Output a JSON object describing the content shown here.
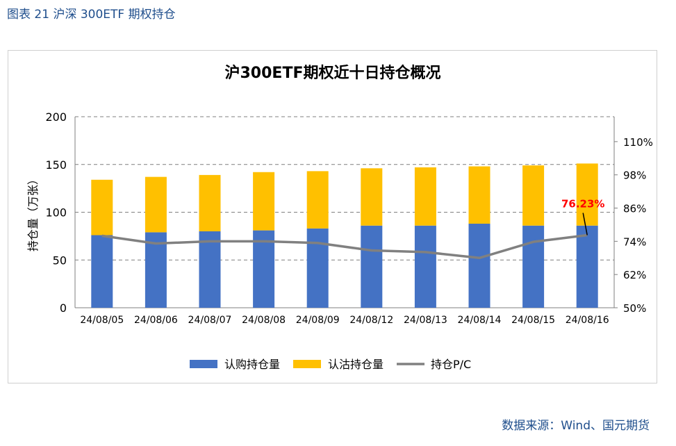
{
  "figure_caption": "图表 21 沪深 300ETF 期权持仓",
  "source": "数据来源：Wind、国元期货",
  "colors": {
    "call": "#4472c4",
    "put": "#ffc000",
    "pc_line": "#808080",
    "annotation": "#ff0000",
    "caption": "#1f4e8c"
  },
  "chart_data": {
    "type": "bar",
    "title": "沪300ETF期权近十日持仓概况",
    "ylabel": "持仓量（万张）",
    "ylim": [
      0,
      200
    ],
    "yticks": [
      "0",
      "50",
      "100",
      "150",
      "200"
    ],
    "y2lim": [
      50,
      119
    ],
    "y2ticks": [
      "50%",
      "62%",
      "74%",
      "86%",
      "98%",
      "110%"
    ],
    "grid": "horizontal dashed",
    "legend_position": "bottom",
    "categories": [
      "24/08/05",
      "24/08/06",
      "24/08/07",
      "24/08/08",
      "24/08/09",
      "24/08/12",
      "24/08/13",
      "24/08/14",
      "24/08/15",
      "24/08/16"
    ],
    "series": [
      {
        "name": "认购持仓量",
        "kind": "bar",
        "stack": "main",
        "values": [
          76,
          79,
          80,
          81,
          83,
          86,
          86,
          88,
          86,
          86
        ]
      },
      {
        "name": "认沽持仓量",
        "kind": "bar",
        "stack": "main",
        "values": [
          58,
          58,
          59,
          61,
          60,
          60,
          61,
          60,
          63,
          65
        ]
      },
      {
        "name": "持仓P/C",
        "kind": "line",
        "axis": "right",
        "values": [
          76.0,
          73.2,
          74.0,
          74.0,
          73.4,
          70.7,
          70.1,
          68.0,
          73.8,
          76.23
        ]
      }
    ],
    "annotation": {
      "text": "76.23%",
      "category": "24/08/16"
    }
  }
}
